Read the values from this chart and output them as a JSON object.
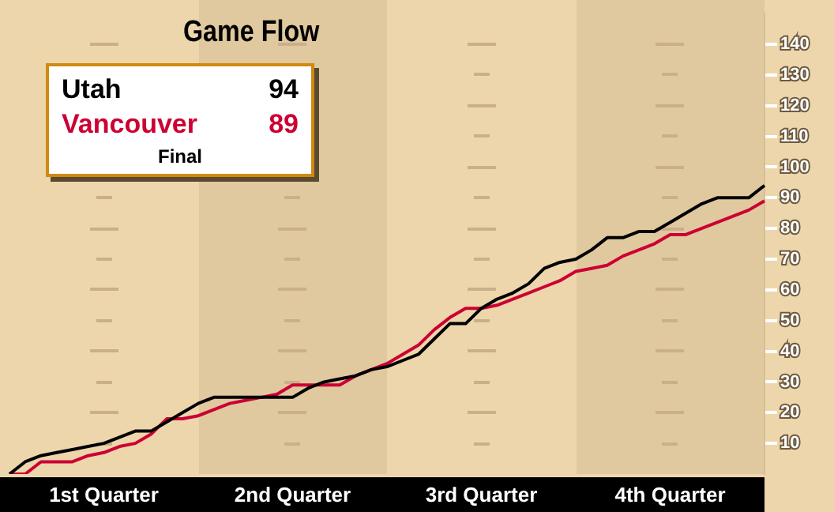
{
  "chart_data": {
    "type": "line",
    "title": "Game Flow",
    "annotations": [
      "94",
      "89",
      "Final"
    ],
    "categories": [
      null,
      null,
      null,
      null,
      null,
      null,
      "1st Quarter",
      null,
      null,
      null,
      null,
      null,
      null,
      null,
      null,
      null,
      null,
      null,
      "2nd Quarter",
      null,
      null,
      null,
      null,
      null,
      null,
      null,
      null,
      null,
      null,
      null,
      "3rd Quarter",
      null,
      null,
      null,
      null,
      null,
      null,
      null,
      null,
      null,
      null,
      null,
      "4th Quarter",
      null,
      null,
      null,
      null,
      null,
      null
    ],
    "series": [
      {
        "name": "Utah",
        "color": "#000000",
        "values": [
          0,
          4,
          6,
          7,
          8,
          9,
          10,
          12,
          14,
          14,
          17,
          20,
          23,
          25,
          25,
          25,
          25,
          25,
          25,
          28,
          30,
          31,
          32,
          34,
          35,
          37,
          39,
          44,
          49,
          49,
          54,
          57,
          59,
          62,
          67,
          69,
          70,
          73,
          77,
          77,
          79,
          79,
          82,
          85,
          88,
          90,
          90,
          90,
          94
        ]
      },
      {
        "name": "Vancouver",
        "color": "#cc0033",
        "values": [
          0,
          0,
          4,
          4,
          4,
          6,
          7,
          9,
          10,
          13,
          18,
          18,
          19,
          21,
          23,
          24,
          25,
          26,
          29,
          29,
          29,
          29,
          32,
          34,
          36,
          39,
          42,
          47,
          51,
          54,
          54,
          55,
          57,
          59,
          61,
          63,
          66,
          67,
          68,
          71,
          73,
          75,
          78,
          78,
          80,
          82,
          84,
          86,
          89
        ]
      }
    ],
    "ylim": [
      0,
      150
    ],
    "yticks": [
      10,
      20,
      30,
      40,
      50,
      60,
      70,
      80,
      90,
      100,
      110,
      120,
      130,
      140
    ],
    "legend": "top left",
    "marker": "none",
    "line_style": "solid"
  }
}
